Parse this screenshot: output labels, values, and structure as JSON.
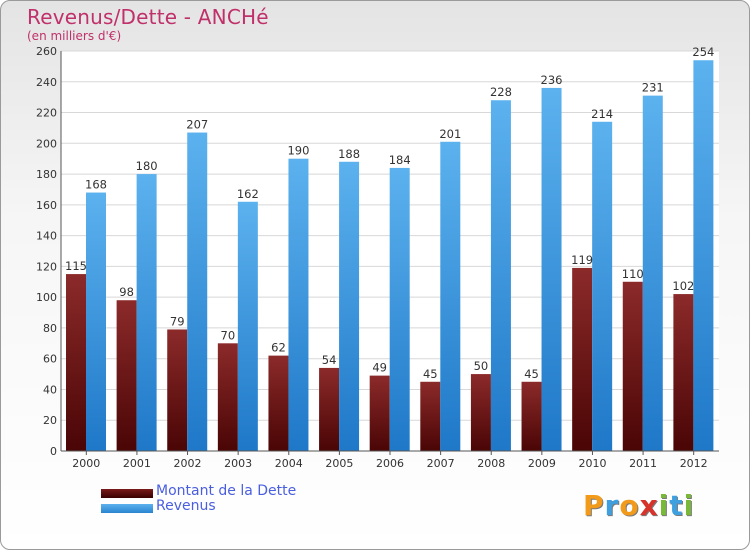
{
  "header": {
    "title": "Revenus/Dette - ANCHé",
    "subtitle": "(en milliers d'€)"
  },
  "colors": {
    "dette": "#7a1a1a",
    "dette_dark": "#4a0505",
    "revenus": "#4ea7e8",
    "revenus_dark": "#1f78c8",
    "label": "#333333"
  },
  "legend": {
    "items": [
      {
        "label": "Montant de la Dette",
        "color": "#5a0a0a"
      },
      {
        "label": "Revenus",
        "color": "#4ea7e8"
      }
    ]
  },
  "logo": {
    "letters": [
      {
        "char": "P",
        "color": "#f29a1a"
      },
      {
        "char": "r",
        "color": "#3fa0e0"
      },
      {
        "char": "o",
        "color": "#f29a1a"
      },
      {
        "char": "x",
        "color": "#d8332a"
      },
      {
        "char": "i",
        "color": "#7ab83a"
      },
      {
        "char": "t",
        "color": "#3fa0e0"
      },
      {
        "char": "i",
        "color": "#7ab83a"
      }
    ]
  },
  "chart_data": {
    "type": "bar",
    "title": "Revenus/Dette - ANCHé",
    "subtitle": "(en milliers d'€)",
    "categories": [
      "2000",
      "2001",
      "2002",
      "2003",
      "2004",
      "2005",
      "2006",
      "2007",
      "2008",
      "2009",
      "2010",
      "2011",
      "2012"
    ],
    "series": [
      {
        "name": "Montant de la Dette",
        "values": [
          115,
          98,
          79,
          70,
          62,
          54,
          49,
          45,
          50,
          45,
          119,
          110,
          102
        ]
      },
      {
        "name": "Revenus",
        "values": [
          168,
          180,
          207,
          162,
          190,
          188,
          184,
          201,
          228,
          236,
          214,
          231,
          254
        ]
      }
    ],
    "ylim": [
      0,
      260
    ],
    "yticks": [
      0,
      20,
      40,
      60,
      80,
      100,
      120,
      140,
      160,
      180,
      200,
      220,
      240,
      260
    ],
    "grid": true,
    "legend_position": "bottom-left"
  }
}
